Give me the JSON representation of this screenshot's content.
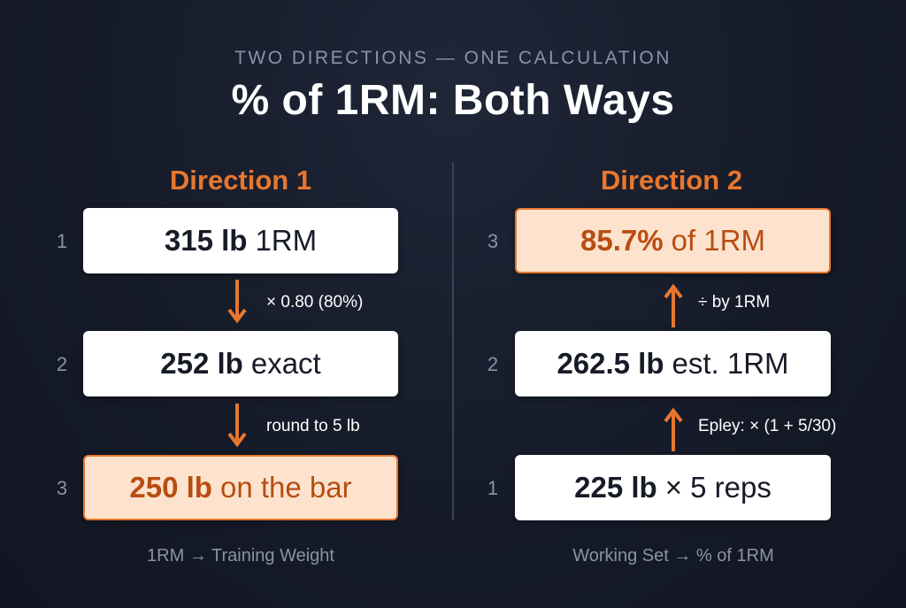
{
  "header": {
    "eyebrow": "TWO DIRECTIONS — ONE CALCULATION",
    "title": "% of 1RM: Both Ways"
  },
  "direction1": {
    "heading": "Direction 1",
    "steps": [
      {
        "num": "1",
        "strong": "315 lb",
        "rest": "1RM",
        "highlight": false
      },
      {
        "num": "2",
        "strong": "252 lb",
        "rest": "exact",
        "highlight": false
      },
      {
        "num": "3",
        "strong": "250 lb",
        "rest": "on the bar",
        "highlight": true
      }
    ],
    "operations": [
      "× 0.80 (80%)",
      "round to 5 lb"
    ],
    "footer": "1RM → Training Weight"
  },
  "direction2": {
    "heading": "Direction 2",
    "steps": [
      {
        "num": "3",
        "strong": "85.7%",
        "rest": "of 1RM",
        "highlight": true
      },
      {
        "num": "2",
        "strong": "262.5 lb",
        "rest": "est. 1RM",
        "highlight": false
      },
      {
        "num": "1",
        "strong": "225 lb",
        "rest": "× 5 reps",
        "highlight": false
      }
    ],
    "operations": [
      "÷ by 1RM",
      "Epley: × (1 + 5/30)"
    ],
    "footer": "Working Set → % of 1RM"
  },
  "colors": {
    "accent": "#e8772e",
    "highlight_bg": "#fde3cd",
    "highlight_text": "#b84d12",
    "background": "#161b29"
  }
}
